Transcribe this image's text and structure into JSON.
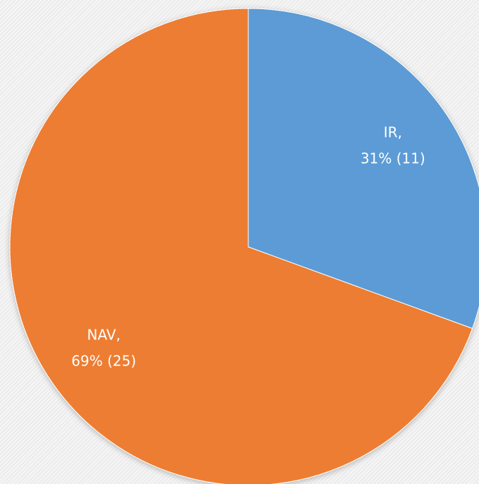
{
  "chart_data": {
    "type": "pie",
    "categories": [
      "IR,",
      "NAV,"
    ],
    "values": [
      11,
      25
    ],
    "value_labels": [
      "31% (11)",
      "69% (25)"
    ],
    "colors": [
      "#5b9bd5",
      "#ed7d31"
    ]
  }
}
